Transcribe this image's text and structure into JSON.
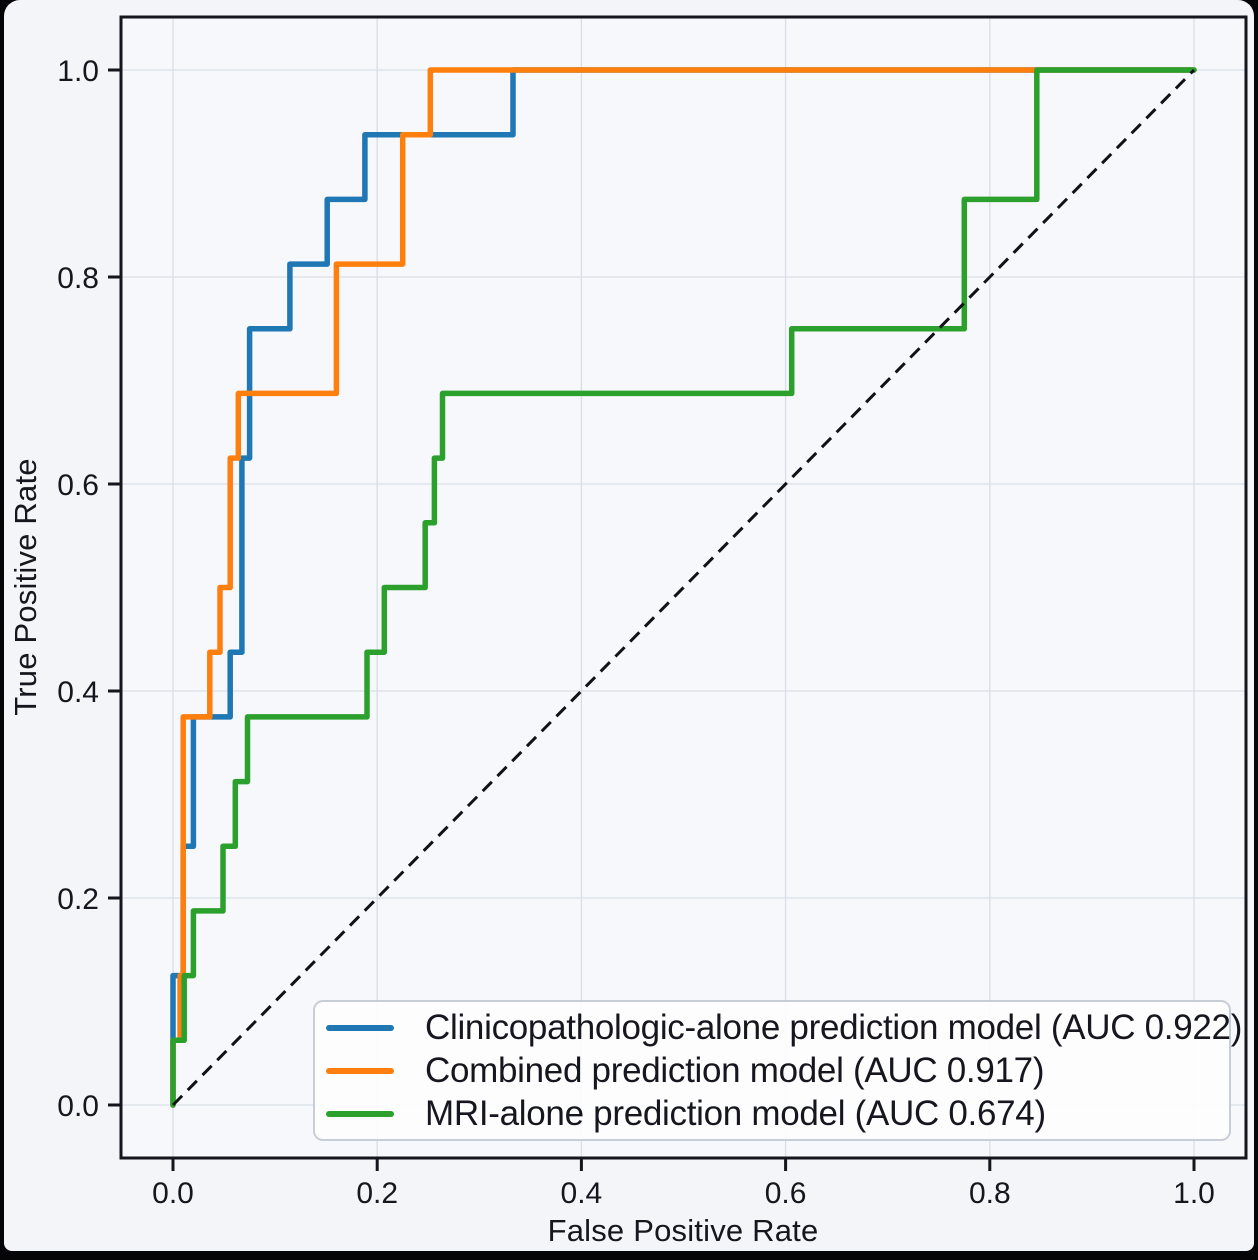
{
  "chart_data": {
    "type": "line",
    "subtype": "roc_step_curves",
    "title": "",
    "xlabel": "False Positive Rate",
    "ylabel": "True Positive Rate",
    "xlim": [
      0.0,
      1.0
    ],
    "ylim": [
      0.0,
      1.0
    ],
    "x_ticks": [
      "0.0",
      "0.2",
      "0.4",
      "0.6",
      "0.8",
      "1.0"
    ],
    "y_ticks": [
      "0.0",
      "0.2",
      "0.4",
      "0.6",
      "0.8",
      "1.0"
    ],
    "grid": true,
    "legend_position": "lower right",
    "series": [
      {
        "name": "Clinicopathologic-alone prediction model (AUC 0.922)",
        "auc": 0.922,
        "color": "#1f77b4",
        "points": [
          [
            0,
            0
          ],
          [
            0,
            0.125
          ],
          [
            0.01,
            0.125
          ],
          [
            0.01,
            0.25
          ],
          [
            0.02,
            0.25
          ],
          [
            0.02,
            0.375
          ],
          [
            0.056,
            0.375
          ],
          [
            0.056,
            0.4375
          ],
          [
            0.0675,
            0.4375
          ],
          [
            0.0675,
            0.625
          ],
          [
            0.075,
            0.625
          ],
          [
            0.075,
            0.75
          ],
          [
            0.1145,
            0.75
          ],
          [
            0.1145,
            0.8125
          ],
          [
            0.151,
            0.8125
          ],
          [
            0.151,
            0.875
          ],
          [
            0.188,
            0.875
          ],
          [
            0.188,
            0.9375
          ],
          [
            0.333,
            0.9375
          ],
          [
            0.333,
            1
          ],
          [
            1,
            1
          ]
        ]
      },
      {
        "name": "Combined prediction model (AUC 0.917)",
        "auc": 0.917,
        "color": "#ff7f0e",
        "points": [
          [
            0,
            0
          ],
          [
            0,
            0.0625
          ],
          [
            0.007,
            0.0625
          ],
          [
            0.007,
            0.125
          ],
          [
            0.01,
            0.125
          ],
          [
            0.01,
            0.375
          ],
          [
            0.036,
            0.375
          ],
          [
            0.036,
            0.4375
          ],
          [
            0.046,
            0.4375
          ],
          [
            0.046,
            0.5
          ],
          [
            0.056,
            0.5
          ],
          [
            0.056,
            0.625
          ],
          [
            0.064,
            0.625
          ],
          [
            0.064,
            0.6875
          ],
          [
            0.16,
            0.6875
          ],
          [
            0.16,
            0.8125
          ],
          [
            0.225,
            0.8125
          ],
          [
            0.225,
            0.9375
          ],
          [
            0.252,
            0.9375
          ],
          [
            0.252,
            1
          ],
          [
            1,
            1
          ]
        ]
      },
      {
        "name": "MRI-alone prediction model (AUC 0.674)",
        "auc": 0.674,
        "color": "#2ca02c",
        "points": [
          [
            0,
            0
          ],
          [
            0,
            0.0625
          ],
          [
            0.011,
            0.0625
          ],
          [
            0.011,
            0.125
          ],
          [
            0.02,
            0.125
          ],
          [
            0.02,
            0.1875
          ],
          [
            0.049,
            0.1875
          ],
          [
            0.049,
            0.25
          ],
          [
            0.061,
            0.25
          ],
          [
            0.061,
            0.3125
          ],
          [
            0.073,
            0.3125
          ],
          [
            0.073,
            0.375
          ],
          [
            0.19,
            0.375
          ],
          [
            0.19,
            0.4375
          ],
          [
            0.207,
            0.4375
          ],
          [
            0.207,
            0.5
          ],
          [
            0.247,
            0.5
          ],
          [
            0.247,
            0.5625
          ],
          [
            0.256,
            0.5625
          ],
          [
            0.256,
            0.625
          ],
          [
            0.264,
            0.625
          ],
          [
            0.264,
            0.6875
          ],
          [
            0.606,
            0.6875
          ],
          [
            0.606,
            0.75
          ],
          [
            0.775,
            0.75
          ],
          [
            0.775,
            0.875
          ],
          [
            0.846,
            0.875
          ],
          [
            0.846,
            1
          ],
          [
            1,
            1
          ]
        ]
      }
    ],
    "reference_line": {
      "from": [
        0,
        0
      ],
      "to": [
        1,
        1
      ],
      "style": "dashed",
      "color": "#111118"
    }
  },
  "colors": {
    "grid": "#d9dee7",
    "spine": "#15151d",
    "text": "#16161e",
    "plot_bg": "#f6f8fc",
    "figure_bg": "#f3f5f9",
    "legend_bg": "#fdfdfe",
    "legend_border": "#c9cdd6",
    "frame_bg": "#050507"
  }
}
